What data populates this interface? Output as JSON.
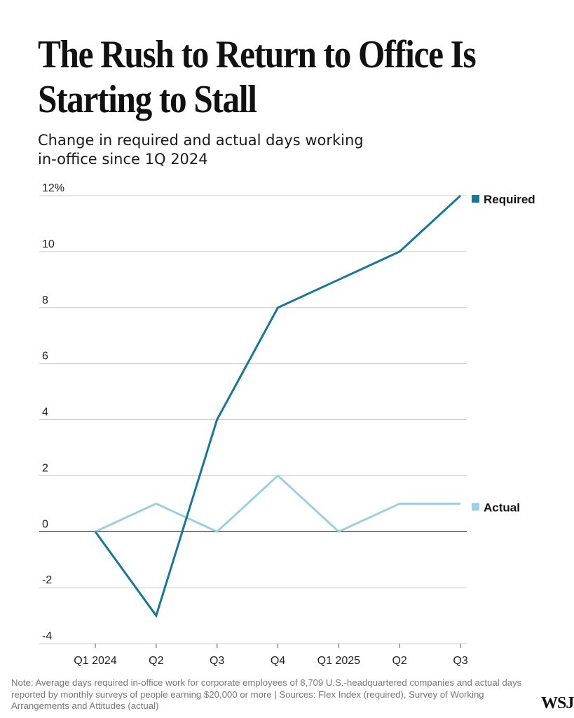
{
  "title": "The Rush to Return to Office Is Starting to Stall",
  "subtitle": "Change in required and actual days working in-office since 1Q 2024",
  "note": "Note: Average days required in-office work for corporate employees of 8,709 U.S.-headquartered companies and actual days reported by monthly surveys of people earning $20,000 or more | Sources: Flex Index (required), Survey of Working Arrangements and Attitudes (actual)",
  "logo": "WSJ",
  "colors": {
    "required": "#15779a",
    "actual": "#9ccfe3",
    "grid": "#cccccc",
    "zero": "#333333"
  },
  "chart_data": {
    "type": "line",
    "categories": [
      "Q1 2024",
      "Q2",
      "Q3",
      "Q4",
      "Q1 2025",
      "Q2",
      "Q3"
    ],
    "series": [
      {
        "name": "Required",
        "values": [
          0,
          -3,
          4,
          8,
          9,
          10,
          12
        ]
      },
      {
        "name": "Actual",
        "values": [
          0,
          1,
          0,
          2,
          0,
          1,
          1
        ]
      }
    ],
    "ylim": [
      -4,
      12
    ],
    "yticks": [
      -4,
      -2,
      0,
      2,
      4,
      6,
      8,
      10,
      12
    ],
    "ytick_labels": [
      "-4",
      "-2",
      "0",
      "2",
      "4",
      "6",
      "8",
      "10",
      "12%"
    ],
    "grid": true,
    "legend_placement": "right, at line ends",
    "title": "The Rush to Return to Office Is Starting to Stall",
    "xlabel": "",
    "ylabel": ""
  }
}
